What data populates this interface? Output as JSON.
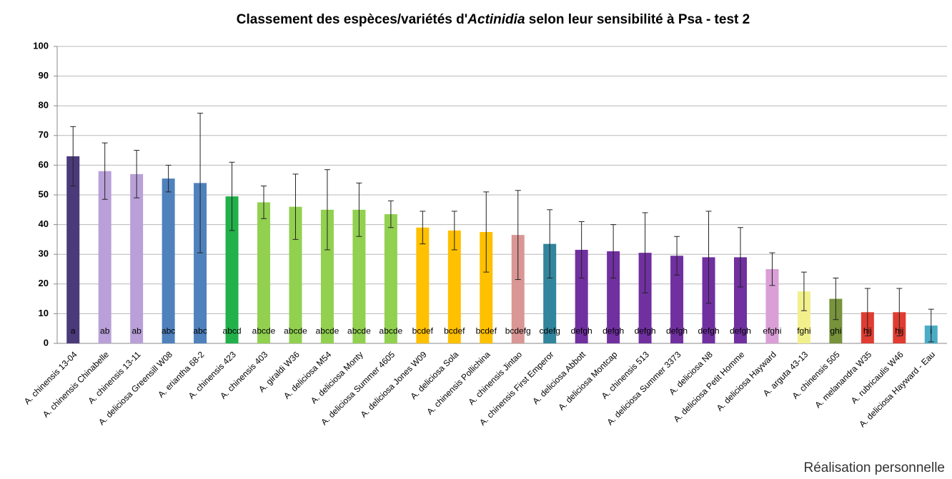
{
  "chart_data": {
    "type": "bar",
    "title_parts": [
      "Classement des espèces/variétés d'",
      "Actinidia",
      " selon leur sensibilité à Psa - test 2"
    ],
    "categories": [
      "A. chinensis 13-04",
      "A. chinensis Chinabelle",
      "A. chinensis 13-11",
      "A. deliciosa Greensill W08",
      "A. eriantha 68-2",
      "A. chinensis 423",
      "A. chinensis 403",
      "A. giraldi W36",
      "A. deliciosa M54",
      "A. deliciosa Monty",
      "A. deliciosa Summer 4605",
      "A. deliciosa Jones W09",
      "A. deliciosa Sola",
      "A. chinensis Pollichina",
      "A. chinensis Jintao",
      "A. chinensis First Emperor",
      "A. deliciosa Abbott",
      "A. deliciosa Montcap",
      "A. chinensis 513",
      "A. deliciosa Summer 3373",
      "A. deliciosa N8",
      "A. deliciosa Petit Homme",
      "A. deliciosa Hayward",
      "A. arguta 43-13",
      "A. chinensis 505",
      "A. melanandra W35",
      "A. rubricaulis W46",
      "A. deliciosa Hayward - Eau"
    ],
    "values": [
      63,
      58,
      57,
      55.5,
      54,
      49.5,
      47.5,
      46,
      45,
      45,
      43.5,
      39,
      38,
      37.5,
      36.5,
      33.5,
      31.5,
      31,
      30.5,
      29.5,
      29,
      29,
      25,
      17.5,
      15,
      10.5,
      10.5,
      6
    ],
    "errors": [
      10,
      9.5,
      8,
      4.5,
      23.5,
      11.5,
      5.5,
      11,
      13.5,
      9,
      4.5,
      5.5,
      6.5,
      13.5,
      15,
      11.5,
      9.5,
      9,
      13.5,
      6.5,
      15.5,
      10,
      5.5,
      6.5,
      7,
      8,
      8,
      5.5
    ],
    "groups": [
      "a",
      "ab",
      "ab",
      "abc",
      "abc",
      "abcd",
      "abcde",
      "abcde",
      "abcde",
      "abcde",
      "abcde",
      "bcdef",
      "bcdef",
      "bcdef",
      "bcdefg",
      "cdefg",
      "defgh",
      "defgh",
      "defgh",
      "defgh",
      "defgh",
      "defgh",
      "efghi",
      "fghi",
      "ghi",
      "hij",
      "hij",
      "i"
    ],
    "colors": [
      "#4b3a7a",
      "#b9a0d8",
      "#b9a0d8",
      "#4f81bd",
      "#4f81bd",
      "#22b04a",
      "#92d050",
      "#92d050",
      "#92d050",
      "#92d050",
      "#92d050",
      "#ffc000",
      "#ffc000",
      "#ffc000",
      "#d99694",
      "#31859c",
      "#7030a0",
      "#7030a0",
      "#7030a0",
      "#7030a0",
      "#7030a0",
      "#7030a0",
      "#d99fd6",
      "#f2f08c",
      "#77933c",
      "#e03c31",
      "#e03c31",
      "#4bacc6"
    ],
    "ylim": [
      0,
      100
    ],
    "yticks": [
      0,
      10,
      20,
      30,
      40,
      50,
      60,
      70,
      80,
      90,
      100
    ],
    "grid": true,
    "footer": "Réalisation personnelle"
  }
}
